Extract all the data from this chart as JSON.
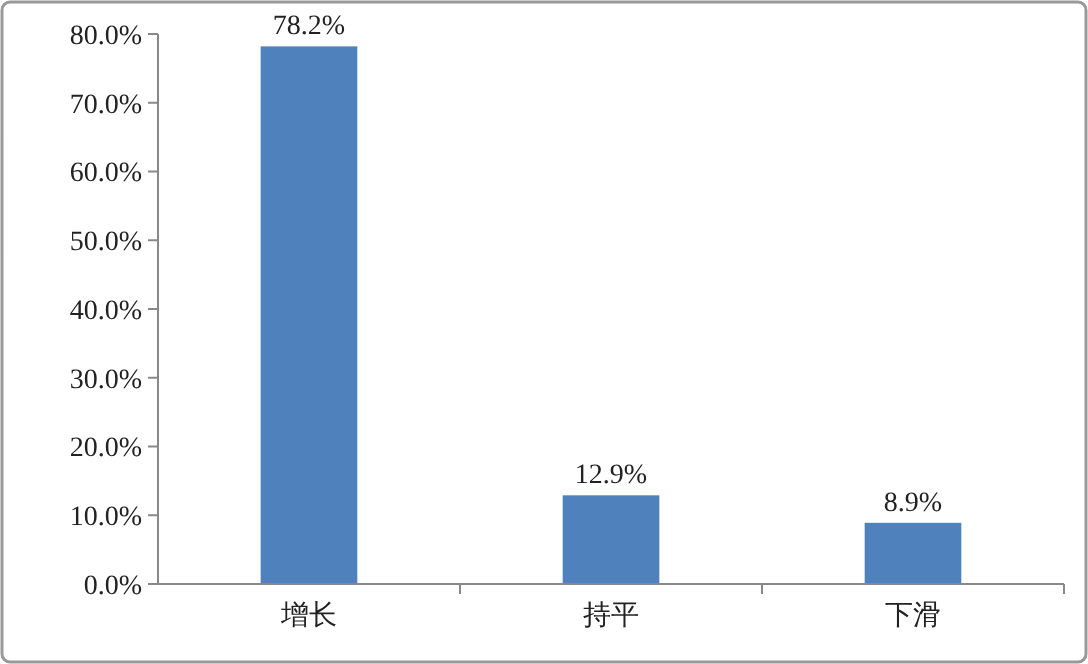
{
  "chart_data": {
    "type": "bar",
    "categories": [
      "增长",
      "持平",
      "下滑"
    ],
    "values": [
      78.2,
      12.9,
      8.9
    ],
    "value_labels": [
      "78.2%",
      "12.9%",
      "8.9%"
    ],
    "color": "#4f81bd",
    "ylim": [
      0,
      80
    ],
    "yticks": [
      {
        "value": 0,
        "label": "0.0%"
      },
      {
        "value": 10,
        "label": "10.0%"
      },
      {
        "value": 20,
        "label": "20.0%"
      },
      {
        "value": 30,
        "label": "30.0%"
      },
      {
        "value": 40,
        "label": "40.0%"
      },
      {
        "value": 50,
        "label": "50.0%"
      },
      {
        "value": 60,
        "label": "60.0%"
      },
      {
        "value": 70,
        "label": "70.0%"
      },
      {
        "value": 80,
        "label": "80.0%"
      }
    ],
    "grid": false
  }
}
